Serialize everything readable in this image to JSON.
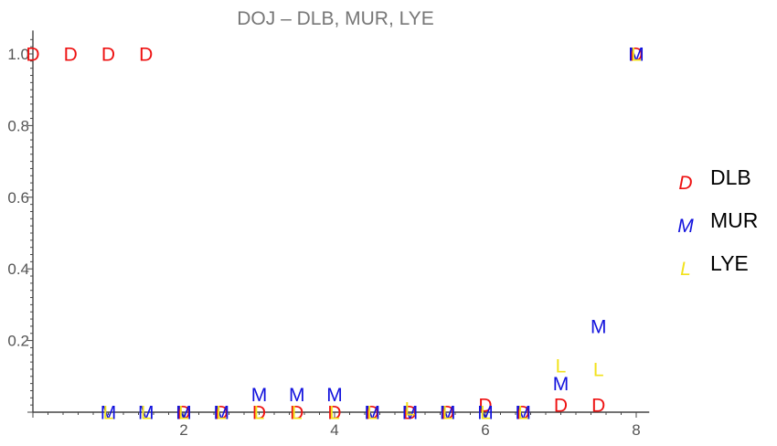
{
  "chart_data": {
    "type": "scatter",
    "title": "DOJ – DLB, MUR, LYE",
    "xlabel": "",
    "ylabel": "",
    "xlim": [
      0,
      8.1
    ],
    "ylim": [
      0,
      1.05
    ],
    "x_ticks": [
      2,
      4,
      6,
      8
    ],
    "y_ticks": [
      0.2,
      0.4,
      0.6,
      0.8,
      1.0
    ],
    "grid": false,
    "legend_position": "right",
    "series": [
      {
        "name": "DLB",
        "marker": "D",
        "color": "#ee1111",
        "points": [
          [
            0,
            1.0
          ],
          [
            0.5,
            1.0
          ],
          [
            1.0,
            1.0
          ],
          [
            1.5,
            1.0
          ],
          [
            2.0,
            0.0
          ],
          [
            2.5,
            0.0
          ],
          [
            3.0,
            0.0
          ],
          [
            3.5,
            0.0
          ],
          [
            4.0,
            0.0
          ],
          [
            4.5,
            0.0
          ],
          [
            5.0,
            0.0
          ],
          [
            5.5,
            0.0
          ],
          [
            6.0,
            0.02
          ],
          [
            6.5,
            0.0
          ],
          [
            7.0,
            0.02
          ],
          [
            7.5,
            0.02
          ],
          [
            8.0,
            1.0
          ]
        ]
      },
      {
        "name": "MUR",
        "marker": "M",
        "color": "#1111dd",
        "points": [
          [
            1.0,
            0.0
          ],
          [
            1.5,
            0.0
          ],
          [
            2.0,
            0.0
          ],
          [
            2.5,
            0.0
          ],
          [
            3.0,
            0.05
          ],
          [
            3.5,
            0.05
          ],
          [
            4.0,
            0.05
          ],
          [
            4.5,
            0.0
          ],
          [
            5.0,
            0.0
          ],
          [
            5.5,
            0.0
          ],
          [
            6.0,
            0.0
          ],
          [
            6.5,
            0.0
          ],
          [
            7.0,
            0.08
          ],
          [
            7.5,
            0.24
          ],
          [
            8.0,
            1.0
          ]
        ]
      },
      {
        "name": "LYE",
        "marker": "L",
        "color": "#f2e21c",
        "points": [
          [
            1.0,
            0.0
          ],
          [
            1.5,
            0.0
          ],
          [
            2.0,
            0.0
          ],
          [
            2.5,
            0.0
          ],
          [
            3.0,
            0.0
          ],
          [
            3.5,
            0.0
          ],
          [
            4.0,
            0.0
          ],
          [
            4.5,
            0.0
          ],
          [
            5.0,
            0.01
          ],
          [
            5.5,
            0.0
          ],
          [
            6.0,
            0.0
          ],
          [
            6.5,
            0.0
          ],
          [
            7.0,
            0.13
          ],
          [
            7.5,
            0.12
          ],
          [
            8.0,
            1.0
          ]
        ]
      }
    ]
  }
}
